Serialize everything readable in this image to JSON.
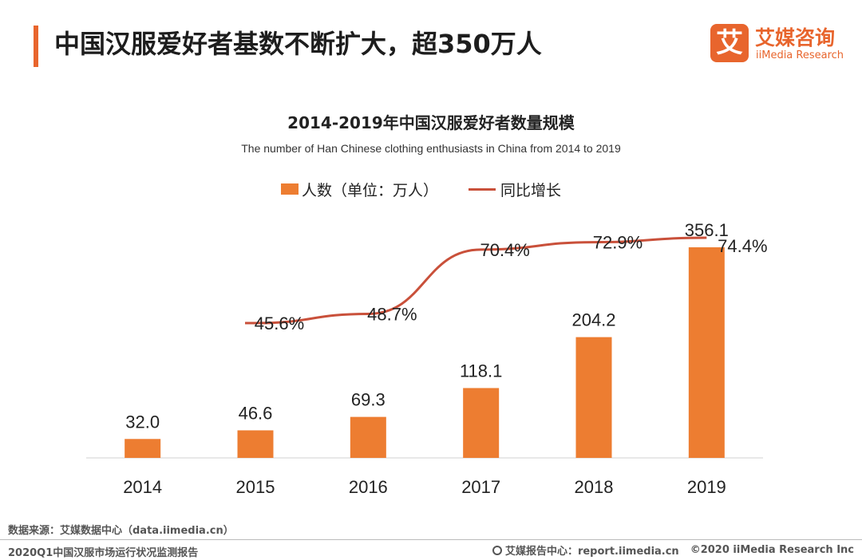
{
  "header": {
    "title": "中国汉服爱好者基数不断扩大，超350万人",
    "logo_mark": "艾",
    "logo_cn": "艾媒咨询",
    "logo_en": "iiMedia Research"
  },
  "colors": {
    "accent": "#e8652d",
    "bar": "#ed7d31",
    "line": "#c9503a"
  },
  "chart_data": {
    "type": "bar",
    "title": "2014-2019年中国汉服爱好者数量规模",
    "subtitle": "The number of Han Chinese clothing enthusiasts in China from 2014 to 2019",
    "categories": [
      "2014",
      "2015",
      "2016",
      "2017",
      "2018",
      "2019"
    ],
    "series": [
      {
        "name": "人数（单位：万人）",
        "type": "bar",
        "values": [
          32.0,
          46.6,
          69.3,
          118.1,
          204.2,
          356.1
        ],
        "labels": [
          "32.0",
          "46.6",
          "69.3",
          "118.1",
          "204.2",
          "356.1"
        ]
      },
      {
        "name": "同比增长",
        "type": "line",
        "values": [
          null,
          45.6,
          48.7,
          70.4,
          72.9,
          74.4
        ],
        "labels": [
          "",
          "45.6%",
          "48.7%",
          "70.4%",
          "72.9%",
          "74.4%"
        ]
      }
    ],
    "legend_position": "top-center",
    "grid": false
  },
  "footer": {
    "source": "数据来源：艾媒数据中心（data.iimedia.cn）",
    "report": "2020Q1中国汉服市场运行状况监测报告",
    "center_label": "艾媒报告中心：report.iimedia.cn",
    "copyright": "©2020  iiMedia Research  Inc"
  }
}
